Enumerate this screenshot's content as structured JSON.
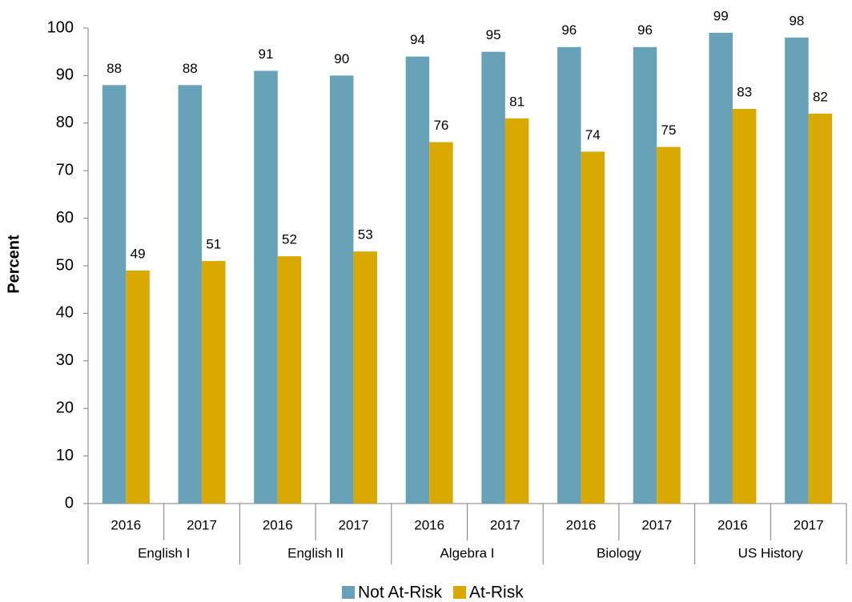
{
  "chart_data": {
    "type": "bar",
    "y_label": "Percent",
    "categories": [
      "2016",
      "2017",
      "2016",
      "2017",
      "2016",
      "2017",
      "2016",
      "2017",
      "2016",
      "2017"
    ],
    "groups": [
      "English I",
      "English II",
      "Algebra I",
      "Biology",
      "US History"
    ],
    "series": [
      {
        "name": "Not At-Risk",
        "color": "#68a2b9",
        "values": [
          88,
          88,
          91,
          90,
          94,
          95,
          96,
          96,
          99,
          98
        ]
      },
      {
        "name": "At-Risk",
        "color": "#daa900",
        "values": [
          49,
          51,
          52,
          53,
          76,
          81,
          74,
          75,
          83,
          82
        ]
      }
    ],
    "ylim": [
      0,
      100
    ],
    "yticks": [
      0,
      10,
      20,
      30,
      40,
      50,
      60,
      70,
      80,
      90,
      100
    ],
    "grid": false,
    "legend": "bottom"
  }
}
